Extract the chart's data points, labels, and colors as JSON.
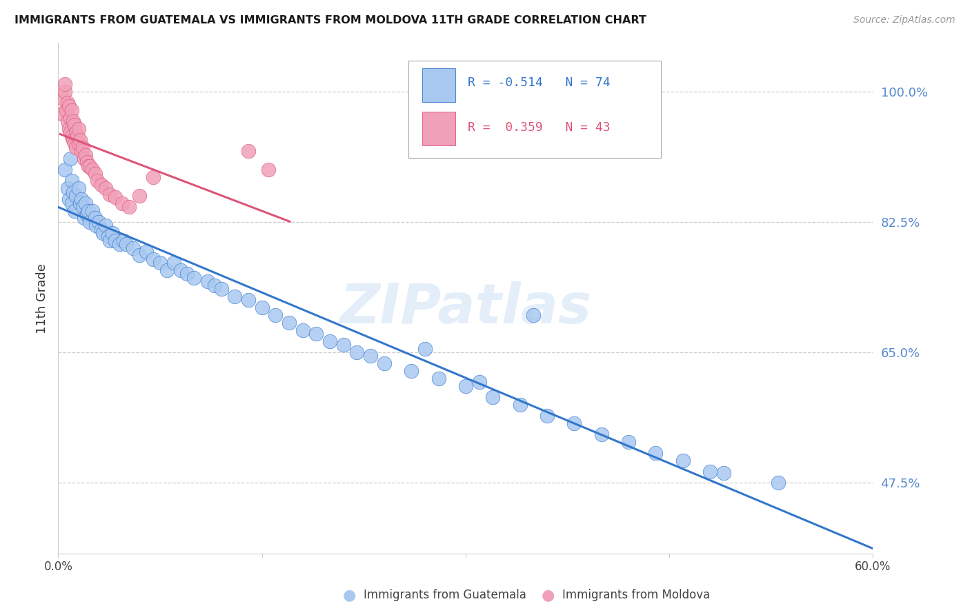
{
  "title": "IMMIGRANTS FROM GUATEMALA VS IMMIGRANTS FROM MOLDOVA 11TH GRADE CORRELATION CHART",
  "source": "Source: ZipAtlas.com",
  "ylabel": "11th Grade",
  "blue_color": "#a8c8f0",
  "pink_color": "#f0a0b8",
  "blue_line_color": "#3377cc",
  "pink_line_color": "#dd5577",
  "legend_blue_label": "Immigrants from Guatemala",
  "legend_pink_label": "Immigrants from Moldova",
  "R_blue": -0.514,
  "N_blue": 74,
  "R_pink": 0.359,
  "N_pink": 43,
  "watermark": "ZIPatlas",
  "xlim": [
    0.0,
    0.6
  ],
  "ylim": [
    0.38,
    1.065
  ],
  "ytick_positions": [
    1.0,
    0.825,
    0.65,
    0.475
  ],
  "ytick_labels": [
    "100.0%",
    "82.5%",
    "65.0%",
    "47.5%"
  ],
  "blue_scatter_x": [
    0.005,
    0.007,
    0.008,
    0.009,
    0.01,
    0.01,
    0.011,
    0.012,
    0.013,
    0.015,
    0.016,
    0.017,
    0.018,
    0.019,
    0.02,
    0.021,
    0.022,
    0.023,
    0.025,
    0.027,
    0.028,
    0.03,
    0.032,
    0.033,
    0.035,
    0.037,
    0.038,
    0.04,
    0.042,
    0.045,
    0.048,
    0.05,
    0.055,
    0.06,
    0.065,
    0.07,
    0.075,
    0.08,
    0.085,
    0.09,
    0.095,
    0.1,
    0.11,
    0.115,
    0.12,
    0.13,
    0.14,
    0.15,
    0.16,
    0.17,
    0.18,
    0.19,
    0.2,
    0.21,
    0.22,
    0.23,
    0.24,
    0.26,
    0.28,
    0.3,
    0.32,
    0.34,
    0.36,
    0.38,
    0.4,
    0.42,
    0.44,
    0.46,
    0.49,
    0.53,
    0.35,
    0.27,
    0.31,
    0.48
  ],
  "blue_scatter_y": [
    0.895,
    0.87,
    0.855,
    0.91,
    0.85,
    0.88,
    0.865,
    0.84,
    0.86,
    0.87,
    0.85,
    0.855,
    0.845,
    0.83,
    0.85,
    0.835,
    0.84,
    0.825,
    0.84,
    0.83,
    0.82,
    0.825,
    0.815,
    0.81,
    0.82,
    0.805,
    0.8,
    0.81,
    0.8,
    0.795,
    0.8,
    0.795,
    0.79,
    0.78,
    0.785,
    0.775,
    0.77,
    0.76,
    0.77,
    0.76,
    0.755,
    0.75,
    0.745,
    0.74,
    0.735,
    0.725,
    0.72,
    0.71,
    0.7,
    0.69,
    0.68,
    0.675,
    0.665,
    0.66,
    0.65,
    0.645,
    0.635,
    0.625,
    0.615,
    0.605,
    0.59,
    0.58,
    0.565,
    0.555,
    0.54,
    0.53,
    0.515,
    0.505,
    0.488,
    0.475,
    0.7,
    0.655,
    0.61,
    0.49
  ],
  "pink_scatter_x": [
    0.003,
    0.004,
    0.005,
    0.005,
    0.006,
    0.007,
    0.007,
    0.008,
    0.008,
    0.009,
    0.009,
    0.01,
    0.01,
    0.011,
    0.011,
    0.012,
    0.012,
    0.013,
    0.013,
    0.014,
    0.015,
    0.015,
    0.016,
    0.017,
    0.018,
    0.019,
    0.02,
    0.021,
    0.022,
    0.023,
    0.025,
    0.027,
    0.029,
    0.032,
    0.035,
    0.038,
    0.042,
    0.047,
    0.052,
    0.06,
    0.07,
    0.14,
    0.155
  ],
  "pink_scatter_y": [
    0.97,
    0.99,
    1.0,
    1.01,
    0.975,
    0.985,
    0.96,
    0.98,
    0.95,
    0.965,
    0.945,
    0.975,
    0.94,
    0.96,
    0.935,
    0.955,
    0.93,
    0.945,
    0.925,
    0.94,
    0.95,
    0.93,
    0.935,
    0.92,
    0.925,
    0.91,
    0.915,
    0.905,
    0.9,
    0.9,
    0.895,
    0.89,
    0.88,
    0.875,
    0.87,
    0.862,
    0.858,
    0.85,
    0.845,
    0.86,
    0.885,
    0.92,
    0.895
  ]
}
